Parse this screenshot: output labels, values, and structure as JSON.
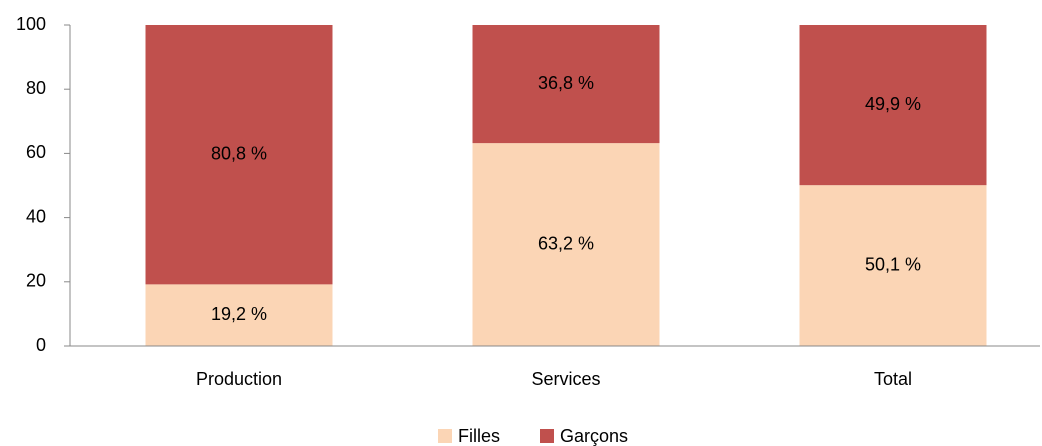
{
  "chart_data": {
    "type": "bar",
    "stacked": true,
    "categories": [
      "Production",
      "Services",
      "Total"
    ],
    "series": [
      {
        "name": "Filles",
        "color": "#fbd5b5",
        "values": [
          19.2,
          63.2,
          50.1
        ],
        "value_labels": [
          "19,2 %",
          "63,2 %",
          "50,1 %"
        ]
      },
      {
        "name": "Garçons",
        "color": "#c0504d",
        "values": [
          80.8,
          36.8,
          49.9
        ],
        "value_labels": [
          "80,8 %",
          "36,8 %",
          "49,9 %"
        ]
      }
    ],
    "ylim": [
      0,
      100
    ],
    "yticks": [
      0,
      20,
      40,
      60,
      80,
      100
    ],
    "grid": false,
    "legend": "bottom"
  }
}
